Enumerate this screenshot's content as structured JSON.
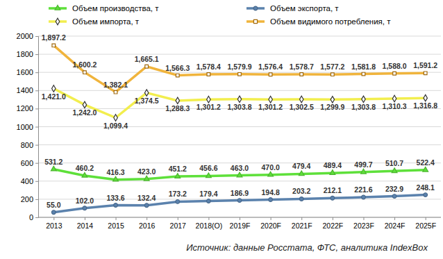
{
  "chart_data": {
    "type": "line",
    "categories": [
      "2013",
      "2014",
      "2015",
      "2016",
      "2017",
      "2018(O)",
      "2019F",
      "2020F",
      "2021F",
      "2022F",
      "2023F",
      "2024F",
      "2025F"
    ],
    "series": [
      {
        "name": "Объем производства, т",
        "color": "#5ee03a",
        "marker": "triangle",
        "values": [
          531.2,
          460.2,
          416.3,
          423.0,
          451.2,
          456.6,
          463.0,
          470.0,
          479.4,
          489.4,
          499.7,
          510.7,
          522.4
        ],
        "value_labels": [
          "531.2",
          "460.2",
          "416.3",
          "423.0",
          "451.2",
          "456.6",
          "463.0",
          "470.0",
          "479.4",
          "489.4",
          "499.7",
          "510.7",
          "522.4"
        ]
      },
      {
        "name": "Объем экспорта, т",
        "color": "#5b82ad",
        "marker": "circle",
        "values": [
          55.0,
          102.0,
          133.6,
          132.4,
          173.2,
          179.4,
          186.9,
          194.8,
          203.2,
          212.1,
          221.6,
          232.9,
          248.1
        ],
        "value_labels": [
          "55.0",
          "102.0",
          "133.6",
          "132.4",
          "173.2",
          "179.4",
          "186.9",
          "194.8",
          "203.2",
          "212.1",
          "221.6",
          "232.9",
          "248.1"
        ]
      },
      {
        "name": "Объем импорта, т",
        "color": "#f2ee4e",
        "marker": "diamond",
        "values": [
          1421.0,
          1242.0,
          1099.4,
          1374.5,
          1288.3,
          1301.2,
          1303.8,
          1301.2,
          1302.5,
          1299.9,
          1303.8,
          1310.3,
          1316.8
        ],
        "value_labels": [
          "1,421.0",
          "1,242.0",
          "1,099.4",
          "1,374.5",
          "1,288.3",
          "1,301.2",
          "1,303.8",
          "1,301.2",
          "1,302.5",
          "1,299.9",
          "1,303.8",
          "1,310.3",
          "1,316.8"
        ]
      },
      {
        "name": "Объем видимого потребления, т",
        "color": "#f0b43c",
        "marker": "square",
        "values": [
          1897.2,
          1600.2,
          1382.1,
          1665.1,
          1566.3,
          1578.4,
          1579.9,
          1576.4,
          1578.7,
          1577.2,
          1581.8,
          1588.0,
          1591.2
        ],
        "value_labels": [
          "1,897.2",
          "1,600.2",
          "1,382.1",
          "1,665.1",
          "1,566.3",
          "1,578.4",
          "1,579.9",
          "1,576.4",
          "1,578.7",
          "1,577.2",
          "1,581.8",
          "1,588.0",
          "1,591.2"
        ]
      }
    ],
    "ylim": [
      0,
      2000
    ],
    "yticks": [
      0,
      200,
      400,
      600,
      800,
      1000,
      1200,
      1400,
      1600,
      1800,
      2000
    ],
    "grid": true,
    "legend": "top",
    "data_labels": true,
    "annotations": [
      "Источник: данные Росстата, ФТС, аналитика IndexBox"
    ]
  }
}
